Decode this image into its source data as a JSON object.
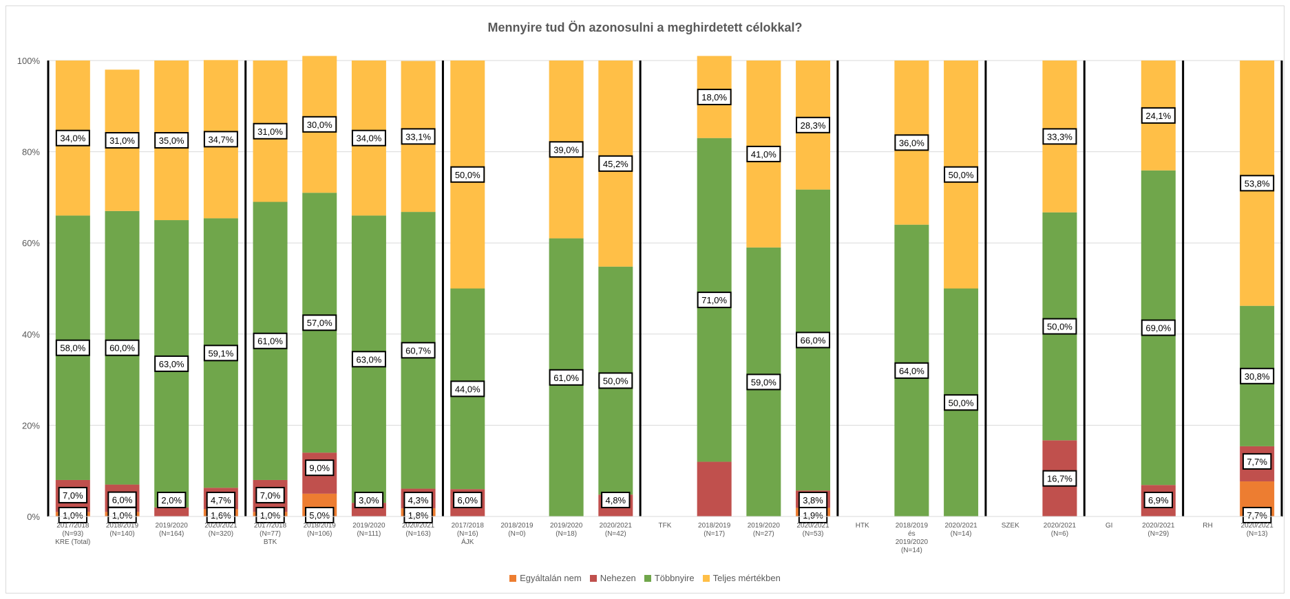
{
  "chart_data": {
    "type": "bar",
    "stacked": true,
    "percent": true,
    "title": "Mennyire tud Ön azonosulni a meghirdetett célokkal?",
    "ylim": [
      0,
      100
    ],
    "y_ticks": [
      "0%",
      "20%",
      "40%",
      "60%",
      "80%",
      "100%"
    ],
    "grid": true,
    "legend_position": "bottom",
    "colors": {
      "Egyáltalán nem": "#ed7d31",
      "Nehezen": "#c0504d",
      "Többnyire": "#70a64b",
      "Teljes mértékben": "#ffbf47",
      "divider": "#000000",
      "label_border": "#000000"
    },
    "series": [
      {
        "name": "Egyáltalán nem",
        "values": [
          1.0,
          1.0,
          0,
          1.6,
          1.0,
          5.0,
          0,
          1.8,
          0,
          null,
          0,
          0,
          null,
          0,
          0,
          1.9,
          null,
          0,
          0,
          null,
          0,
          null,
          0,
          null,
          7.7
        ]
      },
      {
        "name": "Nehezen",
        "values": [
          7.0,
          6.0,
          2.0,
          4.7,
          7.0,
          9.0,
          3.0,
          4.3,
          6.0,
          null,
          0,
          4.8,
          null,
          12.0,
          0,
          3.8,
          null,
          0,
          0,
          null,
          16.7,
          null,
          6.9,
          null,
          7.7
        ]
      },
      {
        "name": "Többnyire",
        "values": [
          58.0,
          60.0,
          63.0,
          59.1,
          61.0,
          57.0,
          63.0,
          60.7,
          44.0,
          null,
          61.0,
          50.0,
          null,
          71.0,
          59.0,
          66.0,
          null,
          64.0,
          50.0,
          null,
          50.0,
          null,
          69.0,
          null,
          30.8
        ]
      },
      {
        "name": "Teljes mértékben",
        "values": [
          34.0,
          31.0,
          35.0,
          34.7,
          31.0,
          30.0,
          34.0,
          33.1,
          50.0,
          null,
          39.0,
          45.2,
          null,
          18.0,
          41.0,
          28.3,
          null,
          36.0,
          50.0,
          null,
          33.3,
          null,
          24.1,
          null,
          53.8
        ]
      }
    ],
    "labels": [
      [
        [
          "1,0%",
          "7,0%",
          "58,0%",
          "34,0%"
        ]
      ],
      [
        [
          "1,0%",
          "6,0%",
          "60,0%",
          "31,0%"
        ]
      ],
      [
        [
          "",
          "2,0%",
          "63,0%",
          "35,0%"
        ]
      ],
      [
        [
          "1,6%",
          "4,7%",
          "59,1%",
          "34,7%"
        ]
      ],
      [
        [
          "1,0%",
          "7,0%",
          "61,0%",
          "31,0%"
        ]
      ],
      [
        [
          "5,0%",
          "9,0%",
          "57,0%",
          "30,0%"
        ]
      ],
      [
        [
          "",
          "3,0%",
          "63,0%",
          "34,0%"
        ]
      ],
      [
        [
          "1,8%",
          "4,3%",
          "60,7%",
          "33,1%"
        ]
      ],
      [
        [
          "",
          "6,0%",
          "44,0%",
          "50,0%"
        ]
      ],
      [
        [
          "",
          "",
          "",
          ""
        ]
      ],
      [
        [
          "",
          "",
          "61,0%",
          "39,0%"
        ]
      ],
      [
        [
          "",
          "4,8%",
          "50,0%",
          "45,2%"
        ]
      ],
      [
        [
          "",
          "",
          "",
          ""
        ]
      ],
      [
        [
          "",
          "",
          "71,0%",
          "18,0%"
        ]
      ],
      [
        [
          "",
          "",
          "59,0%",
          "41,0%"
        ]
      ],
      [
        [
          "1,9%",
          "3,8%",
          "66,0%",
          "28,3%"
        ]
      ],
      [
        [
          "",
          "",
          "",
          ""
        ]
      ],
      [
        [
          "",
          "",
          "64,0%",
          "36,0%"
        ]
      ],
      [
        [
          "",
          "",
          "50,0%",
          "50,0%"
        ]
      ],
      [
        [
          "",
          "",
          "",
          ""
        ]
      ],
      [
        [
          "",
          "16,7%",
          "50,0%",
          "33,3%"
        ]
      ],
      [
        [
          "",
          "",
          "",
          ""
        ]
      ],
      [
        [
          "",
          "6,9%",
          "69,0%",
          "24,1%"
        ]
      ],
      [
        [
          "",
          "",
          "",
          ""
        ]
      ],
      [
        [
          "7,7%",
          "7,7%",
          "30,8%",
          "53,8%"
        ]
      ]
    ],
    "categories": [
      [
        "2017/2018",
        "(N=93)",
        "KRE (Total)"
      ],
      [
        "2018/2019",
        "(N=140)"
      ],
      [
        "2019/2020",
        "(N=164)"
      ],
      [
        "2020/2021",
        "(N=320)"
      ],
      [
        "2017/2018",
        "(N=77)",
        "BTK"
      ],
      [
        "2018/2019",
        "(N=106)"
      ],
      [
        "2019/2020",
        "(N=111)"
      ],
      [
        "2020/2021",
        "(N=163)"
      ],
      [
        "2017/2018",
        "(N=16)",
        "ÁJK"
      ],
      [
        "2018/2019",
        "(N=0)"
      ],
      [
        "2019/2020",
        "(N=18)"
      ],
      [
        "2020/2021",
        "(N=42)"
      ],
      [
        "TFK"
      ],
      [
        "2018/2019",
        "(N=17)"
      ],
      [
        "2019/2020",
        "(N=27)"
      ],
      [
        "2020/2021",
        "(N=53)"
      ],
      [
        "HTK"
      ],
      [
        "2018/2019",
        "és",
        "2019/2020",
        "(N=14)"
      ],
      [
        "2020/2021",
        "(N=14)"
      ],
      [
        "SZEK"
      ],
      [
        "2020/2021",
        "(N=6)"
      ],
      [
        "GI"
      ],
      [
        "2020/2021",
        "(N=29)"
      ],
      [
        "RH"
      ],
      [
        "2020/2021",
        "(N=13)"
      ]
    ]
  }
}
